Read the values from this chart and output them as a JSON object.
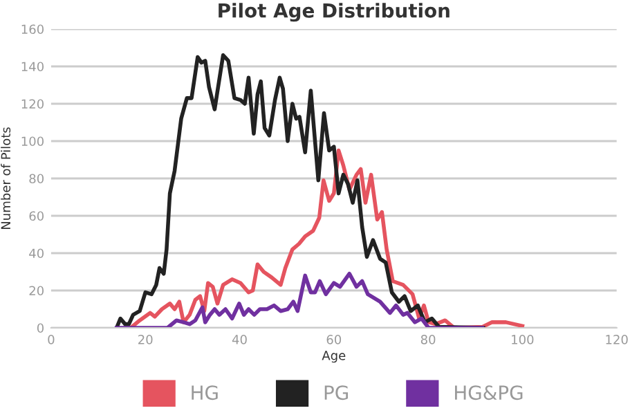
{
  "chart_data": {
    "type": "line",
    "title": "Pilot Age Distribution",
    "xlabel": "Age",
    "ylabel": "Number of Pilots",
    "xlim": [
      0,
      120
    ],
    "xticks": [
      0,
      20,
      40,
      60,
      80,
      100,
      120
    ],
    "ylim": [
      0,
      160
    ],
    "yticks": [
      0,
      20,
      40,
      60,
      80,
      100,
      120,
      140,
      160
    ],
    "grid": "y",
    "legend": "bottom",
    "marker": "none",
    "line_style": "solid",
    "series": [
      {
        "name": "HG",
        "color": "#e5545f",
        "x": [
          16.9,
          18.8,
          21,
          22,
          23.5,
          25.2,
          26.2,
          27.2,
          28.1,
          29.4,
          30.6,
          31.6,
          32.5,
          33.3,
          34.3,
          35.3,
          36.5,
          38.4,
          40.2,
          41.9,
          42.8,
          43.8,
          45.1,
          46.8,
          48.7,
          49.7,
          51.2,
          52.6,
          53.9,
          55.6,
          56.9,
          57.8,
          59,
          60,
          61,
          62,
          63.3,
          64.8,
          65.7,
          66.7,
          67.9,
          69.2,
          70.2,
          71.2,
          72.5,
          74.7,
          76.7,
          78.1,
          79.1,
          80.1,
          81.6,
          83.6,
          85.5,
          91.5,
          93.5,
          96.5,
          100
        ],
        "values": [
          0,
          4,
          8,
          6,
          10,
          13,
          10,
          14,
          3,
          7,
          15,
          17,
          9,
          24,
          22,
          13,
          23,
          26,
          24,
          19,
          20,
          34,
          30,
          27,
          23,
          32,
          42,
          45,
          49,
          52,
          59,
          79,
          68,
          72,
          95,
          87,
          74,
          82,
          85,
          67,
          82,
          58,
          62,
          42,
          25,
          23,
          18,
          5,
          12,
          3,
          2,
          4,
          0,
          0.5,
          3,
          3,
          1
        ]
      },
      {
        "name": "PG",
        "color": "#222222",
        "x": [
          13.9,
          14.7,
          15.7,
          16.5,
          17.4,
          18.8,
          20,
          21.3,
          22.3,
          23,
          23.9,
          24.5,
          25.2,
          26.2,
          27.6,
          28.8,
          29.8,
          31.1,
          31.9,
          32.7,
          33.5,
          34.7,
          35.5,
          36.5,
          37.6,
          38.9,
          40.2,
          41.1,
          41.9,
          43,
          43.8,
          44.5,
          45.3,
          46.3,
          47.5,
          48.5,
          49.2,
          50.2,
          51.2,
          52,
          52.7,
          53.9,
          55.1,
          56.7,
          57.9,
          59,
          60,
          61,
          62,
          63,
          64,
          65,
          66,
          67,
          68.3,
          69.8,
          71,
          72.3,
          73.8,
          75,
          76.3,
          77.8,
          79.3,
          80.8,
          82.3,
          91.7
        ],
        "values": [
          0,
          5,
          2,
          2,
          7,
          9,
          19,
          18,
          23,
          32,
          29,
          42,
          72,
          84,
          112,
          123,
          123,
          145,
          142,
          143,
          129,
          117,
          130,
          146,
          143,
          123,
          122,
          120,
          134,
          104,
          125,
          132,
          107,
          103,
          122,
          134,
          128,
          100,
          120,
          112,
          113,
          94,
          127,
          79,
          115,
          95,
          97,
          72,
          82,
          77,
          67,
          79,
          54,
          38,
          47,
          37,
          35,
          19,
          14,
          17,
          9,
          12,
          3,
          5,
          0.5,
          0
        ]
      },
      {
        "name": "HG&PG",
        "color": "#7030a0",
        "x": [
          13.9,
          24.7,
          26.6,
          28.1,
          29.4,
          30.6,
          32.1,
          32.7,
          33.7,
          34.7,
          35.7,
          37,
          38.4,
          39.9,
          40.9,
          41.9,
          43.1,
          44.3,
          45.8,
          47.3,
          48.7,
          50.2,
          51.4,
          52.3,
          53.9,
          55.1,
          56,
          57,
          58.3,
          60,
          61.3,
          63.3,
          64.8,
          66,
          67.2,
          69.8,
          71.9,
          73.2,
          74.7,
          75.6,
          77.2,
          78.6,
          80.1,
          91.5
        ],
        "values": [
          0,
          0,
          4,
          3,
          2,
          4,
          11,
          3,
          7,
          10,
          7,
          10,
          5,
          13,
          7,
          10,
          7,
          10,
          10,
          12,
          9,
          10,
          14,
          9,
          28,
          19,
          19,
          25,
          18,
          24,
          22,
          29,
          22,
          25,
          18,
          14,
          8,
          12,
          7,
          8,
          3,
          5,
          0,
          0
        ]
      }
    ]
  }
}
